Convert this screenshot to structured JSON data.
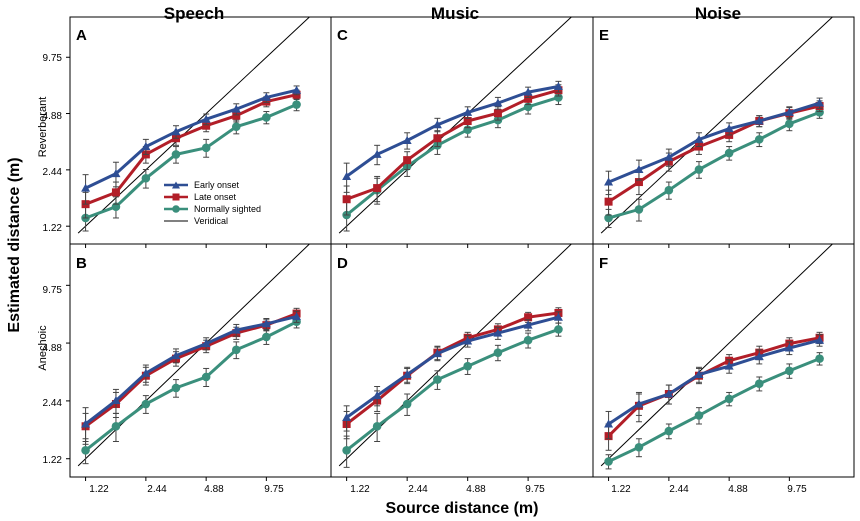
{
  "figure": {
    "ylabel": "Estimated distance (m)",
    "xlabel": "Source distance (m)",
    "columns": [
      "Speech",
      "Music",
      "Noise"
    ],
    "rows": [
      "Reverberant",
      "Anechoic"
    ],
    "panel_letters": [
      "A",
      "C",
      "E",
      "B",
      "D",
      "F"
    ],
    "y_ticks": [
      "1.22",
      "2.44",
      "4.88",
      "9.75"
    ],
    "x_ticks": [
      "1.22",
      "2.44",
      "4.88",
      "9.75"
    ],
    "legend": [
      "Early onset",
      "Late onset",
      "Normally sighted",
      "Veridical"
    ]
  },
  "chart_data": {
    "type": "line",
    "scale": "log2",
    "x": [
      1.22,
      1.73,
      2.44,
      3.45,
      4.88,
      6.9,
      9.75,
      13.8
    ],
    "xlim": [
      1.02,
      20.5
    ],
    "ylim": [
      0.98,
      16.0
    ],
    "colors": {
      "early": "#2e4e94",
      "late": "#b21e28",
      "normal": "#3a8f7c",
      "veridical": "#000000"
    },
    "panels": [
      {
        "letter": "A",
        "condition": "Speech",
        "room": "Reverberant",
        "series": [
          {
            "name": "Early onset",
            "values": [
              1.95,
              2.33,
              3.25,
              3.9,
              4.55,
              5.15,
              5.95,
              6.5
            ],
            "err": [
              0.35,
              0.35,
              0.3,
              0.3,
              0.3,
              0.35,
              0.35,
              0.35
            ]
          },
          {
            "name": "Late onset",
            "values": [
              1.6,
              1.85,
              2.95,
              3.6,
              4.2,
              4.75,
              5.65,
              6.15
            ],
            "err": [
              0.25,
              0.25,
              0.3,
              0.3,
              0.3,
              0.35,
              0.35,
              0.35
            ]
          },
          {
            "name": "Normally sighted",
            "values": [
              1.35,
              1.55,
              2.2,
              2.95,
              3.2,
              4.15,
              4.65,
              5.45
            ],
            "err": [
              0.2,
              0.2,
              0.25,
              0.3,
              0.35,
              0.35,
              0.35,
              0.4
            ]
          },
          {
            "name": "Veridical",
            "values": [
              1.22,
              1.73,
              2.44,
              3.45,
              4.88,
              6.9,
              9.75,
              13.8
            ]
          }
        ]
      },
      {
        "letter": "C",
        "condition": "Music",
        "room": "Reverberant",
        "series": [
          {
            "name": "Early onset",
            "values": [
              2.25,
              2.95,
              3.5,
              4.25,
              4.95,
              5.55,
              6.35,
              6.8
            ],
            "err": [
              0.4,
              0.35,
              0.35,
              0.35,
              0.35,
              0.4,
              0.4,
              0.45
            ]
          },
          {
            "name": "Late onset",
            "values": [
              1.7,
              1.95,
              2.75,
              3.6,
              4.45,
              4.9,
              5.85,
              6.5
            ],
            "err": [
              0.3,
              0.3,
              0.3,
              0.35,
              0.35,
              0.4,
              0.4,
              0.45
            ]
          },
          {
            "name": "Normally sighted",
            "values": [
              1.4,
              1.9,
              2.55,
              3.3,
              4.0,
              4.5,
              5.3,
              5.95
            ],
            "err": [
              0.25,
              0.3,
              0.3,
              0.35,
              0.35,
              0.4,
              0.45,
              0.5
            ]
          },
          {
            "name": "Veridical",
            "values": [
              1.22,
              1.73,
              2.44,
              3.45,
              4.88,
              6.9,
              9.75,
              13.8
            ]
          }
        ]
      },
      {
        "letter": "E",
        "condition": "Noise",
        "room": "Reverberant",
        "series": [
          {
            "name": "Early onset",
            "values": [
              2.1,
              2.45,
              2.85,
              3.55,
              4.05,
              4.45,
              4.95,
              5.55
            ],
            "err": [
              0.3,
              0.3,
              0.3,
              0.3,
              0.3,
              0.3,
              0.35,
              0.35
            ]
          },
          {
            "name": "Late onset",
            "values": [
              1.65,
              2.1,
              2.7,
              3.25,
              3.75,
              4.45,
              4.9,
              5.35
            ],
            "err": [
              0.25,
              0.3,
              0.3,
              0.3,
              0.3,
              0.3,
              0.35,
              0.35
            ]
          },
          {
            "name": "Normally sighted",
            "values": [
              1.35,
              1.5,
              1.9,
              2.45,
              3.0,
              3.55,
              4.3,
              4.95
            ],
            "err": [
              0.15,
              0.2,
              0.2,
              0.25,
              0.25,
              0.3,
              0.35,
              0.35
            ]
          },
          {
            "name": "Veridical",
            "values": [
              1.22,
              1.73,
              2.44,
              3.45,
              4.88,
              6.9,
              9.75,
              13.8
            ]
          }
        ]
      },
      {
        "letter": "B",
        "condition": "Speech",
        "room": "Anechoic",
        "series": [
          {
            "name": "Early onset",
            "values": [
              1.85,
              2.45,
              3.4,
              4.2,
              4.85,
              5.7,
              6.15,
              6.7
            ],
            "err": [
              0.4,
              0.35,
              0.35,
              0.35,
              0.35,
              0.4,
              0.4,
              0.45
            ]
          },
          {
            "name": "Late onset",
            "values": [
              1.8,
              2.35,
              3.3,
              4.05,
              4.7,
              5.5,
              6.05,
              6.95
            ],
            "err": [
              0.3,
              0.35,
              0.35,
              0.35,
              0.35,
              0.4,
              0.4,
              0.45
            ]
          },
          {
            "name": "Normally sighted",
            "values": [
              1.35,
              1.8,
              2.35,
              2.85,
              3.25,
              4.5,
              5.25,
              6.3
            ],
            "err": [
              0.2,
              0.3,
              0.25,
              0.3,
              0.35,
              0.45,
              0.45,
              0.45
            ]
          },
          {
            "name": "Veridical",
            "values": [
              1.22,
              1.73,
              2.44,
              3.45,
              4.88,
              6.9,
              9.75,
              13.8
            ]
          }
        ]
      },
      {
        "letter": "D",
        "condition": "Music",
        "room": "Anechoic",
        "series": [
          {
            "name": "Early onset",
            "values": [
              2.0,
              2.6,
              3.35,
              4.3,
              5.0,
              5.5,
              6.05,
              6.65
            ],
            "err": [
              0.3,
              0.3,
              0.3,
              0.35,
              0.35,
              0.4,
              0.4,
              0.45
            ]
          },
          {
            "name": "Late onset",
            "values": [
              1.85,
              2.45,
              3.3,
              4.35,
              5.2,
              5.75,
              6.65,
              7.0
            ],
            "err": [
              0.3,
              0.3,
              0.3,
              0.35,
              0.35,
              0.4,
              0.4,
              0.45
            ]
          },
          {
            "name": "Normally sighted",
            "values": [
              1.35,
              1.8,
              2.35,
              3.15,
              3.7,
              4.35,
              5.05,
              5.75
            ],
            "err": [
              0.25,
              0.3,
              0.3,
              0.35,
              0.35,
              0.4,
              0.45,
              0.45
            ]
          },
          {
            "name": "Veridical",
            "values": [
              1.22,
              1.73,
              2.44,
              3.45,
              4.88,
              6.9,
              9.75,
              13.8
            ]
          }
        ]
      },
      {
        "letter": "F",
        "condition": "Noise",
        "room": "Anechoic",
        "series": [
          {
            "name": "Early onset",
            "values": [
              1.85,
              2.35,
              2.65,
              3.35,
              3.7,
              4.15,
              4.6,
              5.05
            ],
            "err": [
              0.3,
              0.3,
              0.3,
              0.3,
              0.3,
              0.35,
              0.35,
              0.35
            ]
          },
          {
            "name": "Late onset",
            "values": [
              1.6,
              2.3,
              2.65,
              3.3,
              3.95,
              4.35,
              4.85,
              5.2
            ],
            "err": [
              0.25,
              0.4,
              0.3,
              0.3,
              0.3,
              0.35,
              0.35,
              0.35
            ]
          },
          {
            "name": "Normally sighted",
            "values": [
              1.18,
              1.4,
              1.7,
              2.05,
              2.5,
              3.0,
              3.5,
              4.05
            ],
            "err": [
              0.1,
              0.15,
              0.15,
              0.2,
              0.2,
              0.25,
              0.3,
              0.3
            ]
          },
          {
            "name": "Veridical",
            "values": [
              1.22,
              1.73,
              2.44,
              3.45,
              4.88,
              6.9,
              9.75,
              13.8
            ]
          }
        ]
      }
    ]
  }
}
